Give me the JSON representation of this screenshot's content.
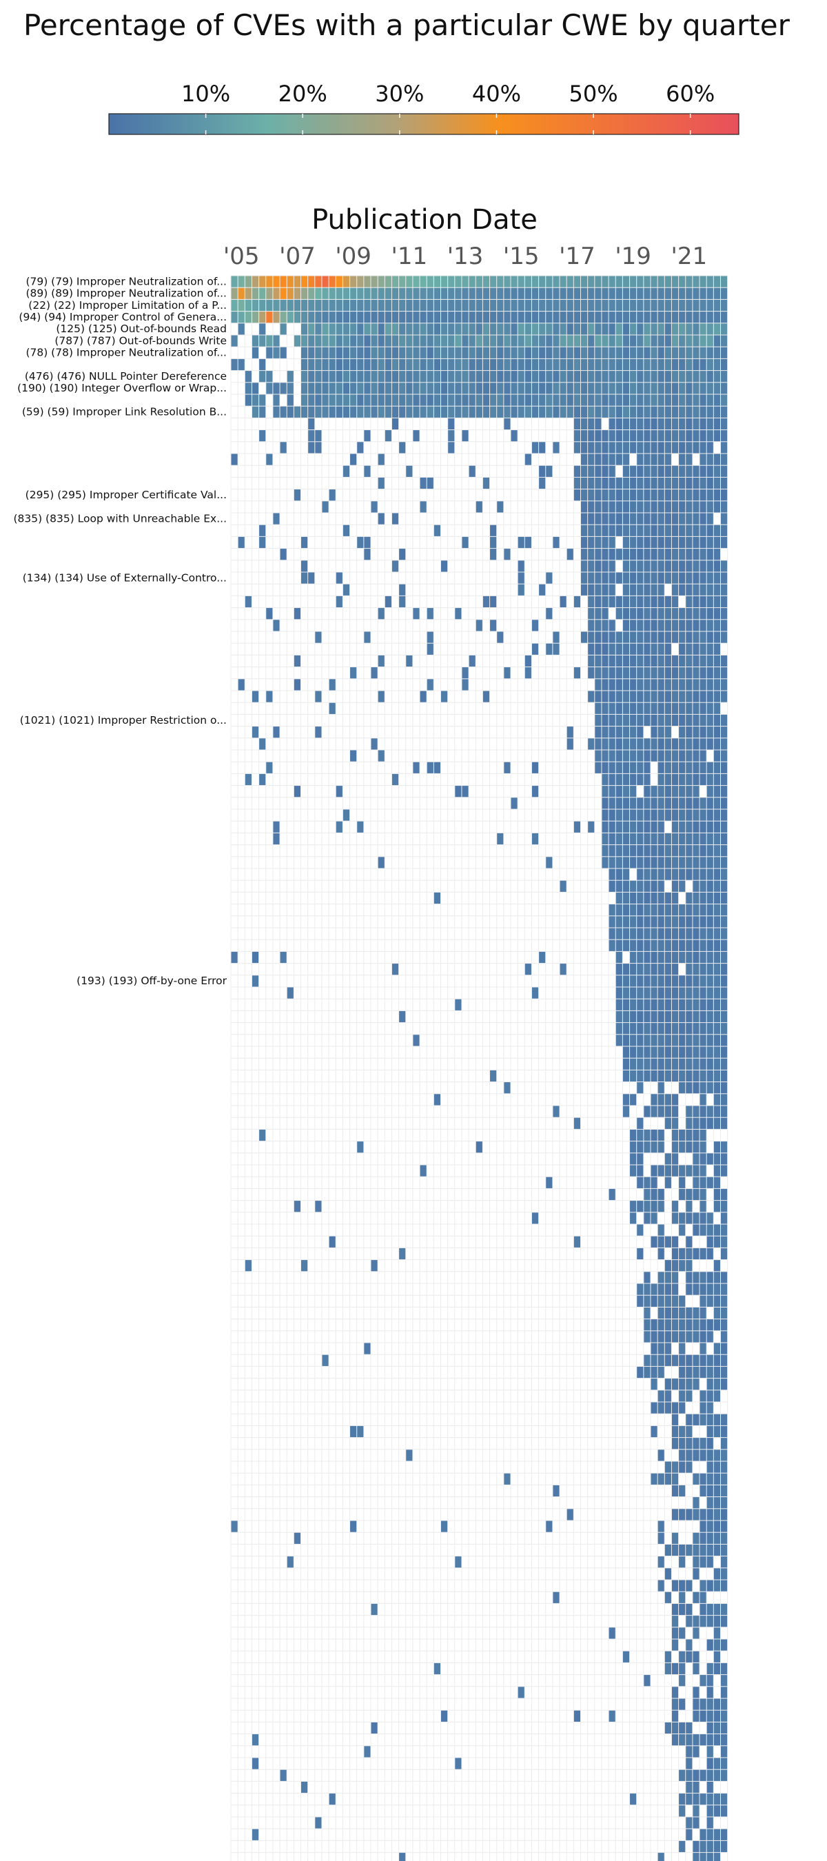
{
  "chart_data": {
    "type": "heatmap",
    "title": "Percentage of CVEs with a particular CWE by quarter",
    "xlabel": "Publication Date",
    "x_tick_labels": [
      "'05",
      "'07",
      "'09",
      "'11",
      "'13",
      "'15",
      "'17",
      "'19",
      "'21"
    ],
    "x_tick_years": [
      2005,
      2007,
      2009,
      2011,
      2013,
      2015,
      2017,
      2019,
      2021
    ],
    "x_range": [
      "2004-Q4",
      "2022-Q2"
    ],
    "legend": {
      "position": "top",
      "ticks": [
        "10%",
        "20%",
        "30%",
        "40%",
        "50%",
        "60%"
      ],
      "tick_values": [
        10,
        20,
        30,
        40,
        50,
        60
      ],
      "range": [
        0,
        65
      ]
    },
    "colors": {
      "low": "#4a72a8",
      "teal": "#6cb0a8",
      "mid": "#b0a27a",
      "orange": "#f7901e",
      "high": "#e8505c",
      "grid": "#ececec"
    },
    "labeled_rows": [
      {
        "row": 0,
        "label": "(79) (79) Improper Neutralization of..."
      },
      {
        "row": 1,
        "label": "(89) (89) Improper Neutralization of..."
      },
      {
        "row": 2,
        "label": "(22) (22) Improper Limitation of a P..."
      },
      {
        "row": 3,
        "label": "(94) (94) Improper Control of Genera..."
      },
      {
        "row": 4,
        "label": "(125) (125) Out-of-bounds Read"
      },
      {
        "row": 5,
        "label": "(787) (787) Out-of-bounds Write"
      },
      {
        "row": 6,
        "label": "(78) (78) Improper Neutralization of..."
      },
      {
        "row": 8,
        "label": "(476) (476) NULL Pointer Dereference"
      },
      {
        "row": 9,
        "label": "(190) (190) Integer Overflow or Wrap..."
      },
      {
        "row": 11,
        "label": "(59) (59) Improper Link Resolution B..."
      },
      {
        "row": 18,
        "label": "(295) (295) Improper Certificate Val..."
      },
      {
        "row": 20,
        "label": "(835) (835) Loop with Unreachable Ex..."
      },
      {
        "row": 25,
        "label": "(134) (134) Use of Externally-Contro..."
      },
      {
        "row": 37,
        "label": "(1021) (1021) Improper Restriction o..."
      },
      {
        "row": 59,
        "label": "(193) (193) Off-by-one Error"
      }
    ],
    "n_rows": 136,
    "n_quarters": 71,
    "rows_values_note": "percent by quarter",
    "top_rows_levels": [
      {
        "row": 0,
        "values": [
          14,
          18,
          22,
          30,
          35,
          38,
          40,
          42,
          38,
          35,
          40,
          45,
          50,
          55,
          48,
          40,
          35,
          30,
          28,
          25,
          24,
          22,
          20,
          18,
          18,
          17,
          16,
          16,
          15,
          15,
          15,
          14,
          14,
          14,
          13,
          13,
          13,
          12,
          12,
          12,
          12,
          12,
          12,
          12,
          11,
          11,
          11,
          11,
          11,
          11,
          10,
          10,
          10,
          10,
          10,
          10,
          10,
          10,
          10,
          10,
          10,
          10,
          10,
          10,
          10,
          10,
          10,
          10,
          10,
          10,
          10
        ]
      },
      {
        "row": 1,
        "values": [
          25,
          38,
          30,
          22,
          18,
          26,
          32,
          40,
          36,
          30,
          24,
          20,
          16,
          14,
          13,
          12,
          12,
          11,
          11,
          10,
          10,
          9,
          9,
          8,
          8,
          8,
          7,
          7,
          7,
          6,
          6,
          6,
          6,
          5,
          5,
          5,
          5,
          5,
          5,
          4,
          4,
          4,
          4,
          4,
          4,
          4,
          4,
          4,
          4,
          4,
          4,
          4,
          4,
          4,
          4,
          4,
          4,
          4,
          4,
          4,
          4,
          4,
          4,
          4,
          4,
          4,
          4,
          4,
          4,
          4,
          4
        ]
      },
      {
        "row": 2,
        "values": [
          15,
          18,
          14,
          12,
          11,
          10,
          10,
          9,
          9,
          8,
          8,
          8,
          7,
          7,
          7,
          7,
          6,
          6,
          6,
          6,
          6,
          6,
          6,
          6,
          6,
          5,
          5,
          5,
          5,
          5,
          5,
          5,
          5,
          5,
          5,
          5,
          5,
          5,
          5,
          5,
          5,
          5,
          5,
          5,
          5,
          5,
          5,
          5,
          5,
          5,
          5,
          5,
          5,
          5,
          5,
          5,
          5,
          5,
          5,
          5,
          5,
          5,
          5,
          5,
          5,
          5,
          5,
          5,
          5,
          5,
          5
        ]
      },
      {
        "row": 3,
        "values": [
          10,
          14,
          18,
          22,
          30,
          48,
          30,
          20,
          14,
          10,
          8,
          6,
          5,
          4,
          4,
          3,
          3,
          3,
          3,
          3,
          3,
          3,
          3,
          3,
          3,
          3,
          3,
          3,
          3,
          3,
          3,
          3,
          3,
          3,
          3,
          3,
          3,
          3,
          3,
          3,
          3,
          3,
          3,
          3,
          3,
          3,
          3,
          3,
          3,
          3,
          3,
          3,
          3,
          3,
          3,
          3,
          3,
          3,
          3,
          3,
          3,
          3,
          3,
          3,
          3,
          3,
          3,
          3,
          3,
          3,
          3
        ]
      }
    ]
  }
}
